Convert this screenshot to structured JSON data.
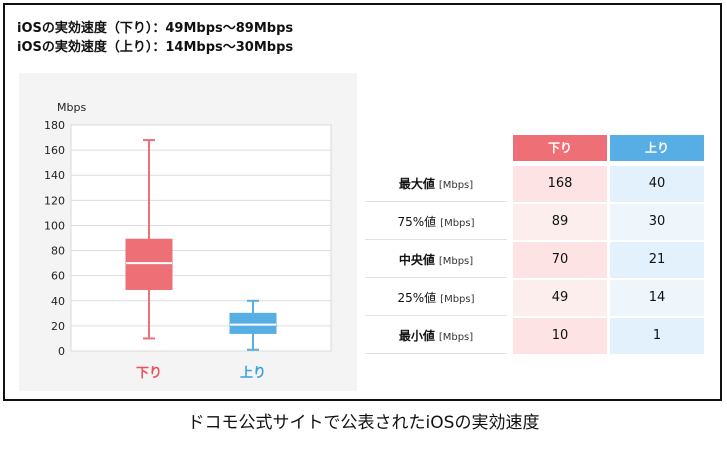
{
  "header": {
    "line1": "iOSの実効速度（下り）：49Mbps～89Mbps",
    "line2": "iOSの実効速度（上り）：14Mbps～30Mbps"
  },
  "caption": "ドコモ公式サイトで公表されたiOSの実効速度",
  "colors": {
    "down": "#ee6f75",
    "up": "#56aee4",
    "down_text": "#e8505a",
    "up_text": "#3aa0de"
  },
  "chart_data": {
    "type": "box",
    "ylabel": "Mbps",
    "ylim": [
      0,
      180
    ],
    "yticks": [
      0,
      20,
      40,
      60,
      80,
      100,
      120,
      140,
      160,
      180
    ],
    "grid": true,
    "series": [
      {
        "name": "下り",
        "color": "#ee6f75",
        "max": 168,
        "q3": 89,
        "median": 70,
        "q1": 49,
        "min": 10
      },
      {
        "name": "上り",
        "color": "#56aee4",
        "max": 40,
        "q3": 30,
        "median": 21,
        "q1": 14,
        "min": 1
      }
    ]
  },
  "table": {
    "headers": {
      "down": "下り",
      "up": "上り"
    },
    "unit": "[Mbps]",
    "rows": [
      {
        "label": "最大値",
        "down": "168",
        "up": "40"
      },
      {
        "label": "75%値",
        "down": "89",
        "up": "30"
      },
      {
        "label": "中央値",
        "down": "70",
        "up": "21"
      },
      {
        "label": "25%値",
        "down": "49",
        "up": "14"
      },
      {
        "label": "最小値",
        "down": "10",
        "up": "1"
      }
    ]
  }
}
